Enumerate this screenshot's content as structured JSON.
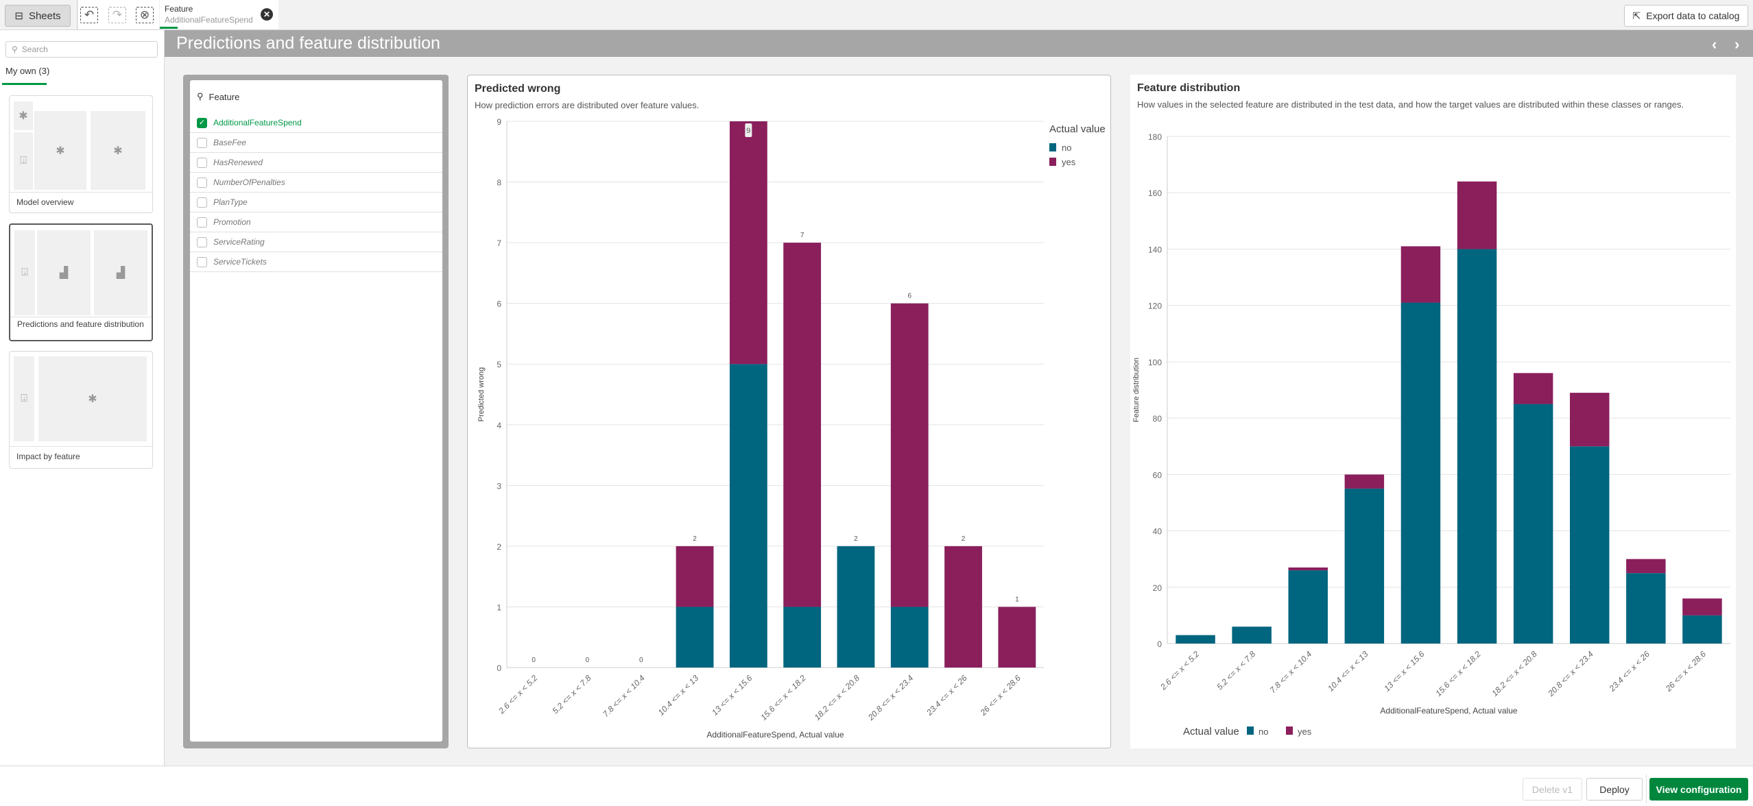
{
  "toolbar": {
    "sheets_label": "Sheets",
    "selection_field": "Feature",
    "selection_value": "AdditionalFeatureSpend",
    "export_label": "Export data to catalog"
  },
  "sidebar": {
    "search_placeholder": "Search",
    "tab_label": "My own (3)",
    "sheets": [
      {
        "label": "Model overview"
      },
      {
        "label": "Predictions and feature distribution",
        "selected": true
      },
      {
        "label": "Impact by feature"
      }
    ]
  },
  "sheet_title": "Predictions and feature distribution",
  "filter": {
    "title": "Feature",
    "items": [
      {
        "label": "AdditionalFeatureSpend",
        "selected": true
      },
      {
        "label": "BaseFee"
      },
      {
        "label": "HasRenewed"
      },
      {
        "label": "NumberOfPenalties"
      },
      {
        "label": "PlanType"
      },
      {
        "label": "Promotion"
      },
      {
        "label": "ServiceRating"
      },
      {
        "label": "ServiceTickets"
      }
    ]
  },
  "footer": {
    "delete_label": "Delete v1",
    "deploy_label": "Deploy",
    "view_config_label": "View configuration"
  },
  "colors": {
    "no": "#00657f",
    "yes": "#8a1f5c",
    "accent": "#009845"
  },
  "chart_data": [
    {
      "type": "bar",
      "stacked": true,
      "title": "Predicted wrong",
      "subtitle": "How prediction errors are distributed over feature values.",
      "xlabel": "AdditionalFeatureSpend, Actual value",
      "ylabel": "Predicted wrong",
      "ylim": [
        0,
        9
      ],
      "yticks": [
        0,
        1,
        2,
        3,
        4,
        5,
        6,
        7,
        8,
        9
      ],
      "grid": true,
      "legend_title": "Actual value",
      "legend_position": "right",
      "categories": [
        "2.6 <= x < 5.2",
        "5.2 <= x < 7.8",
        "7.8 <= x < 10.4",
        "10.4 <= x < 13",
        "13 <= x < 15.6",
        "15.6 <= x < 18.2",
        "18.2 <= x < 20.8",
        "20.8 <= x < 23.4",
        "23.4 <= x < 26",
        "26 <= x < 28.6"
      ],
      "series": [
        {
          "name": "no",
          "values": [
            0,
            0,
            0,
            1,
            5,
            1,
            2,
            1,
            0,
            0
          ]
        },
        {
          "name": "yes",
          "values": [
            0,
            0,
            0,
            1,
            4,
            6,
            0,
            5,
            2,
            1
          ]
        }
      ],
      "totals": [
        "0",
        "0",
        "0",
        "2",
        "9",
        "7",
        "2",
        "6",
        "2",
        "1"
      ]
    },
    {
      "type": "bar",
      "stacked": true,
      "title": "Feature distribution",
      "subtitle": "How values in the selected feature are distributed in the test data, and how the target values are distributed within these classes or ranges.",
      "xlabel": "AdditionalFeatureSpend, Actual value",
      "ylabel": "Feature distribution",
      "ylim": [
        0,
        180
      ],
      "yticks": [
        0,
        20,
        40,
        60,
        80,
        100,
        120,
        140,
        160,
        180
      ],
      "grid": true,
      "legend_title": "Actual value",
      "legend_position": "bottom",
      "categories": [
        "2.6 <= x < 5.2",
        "5.2 <= x < 7.8",
        "7.8 <= x < 10.4",
        "10.4 <= x < 13",
        "13 <= x < 15.6",
        "15.6 <= x < 18.2",
        "18.2 <= x < 20.8",
        "20.8 <= x < 23.4",
        "23.4 <= x < 26",
        "26 <= x < 28.6"
      ],
      "series": [
        {
          "name": "no",
          "values": [
            3,
            6,
            26,
            55,
            121,
            140,
            85,
            70,
            25,
            10
          ]
        },
        {
          "name": "yes",
          "values": [
            0,
            0,
            1,
            5,
            20,
            24,
            11,
            19,
            5,
            6
          ]
        }
      ]
    }
  ]
}
